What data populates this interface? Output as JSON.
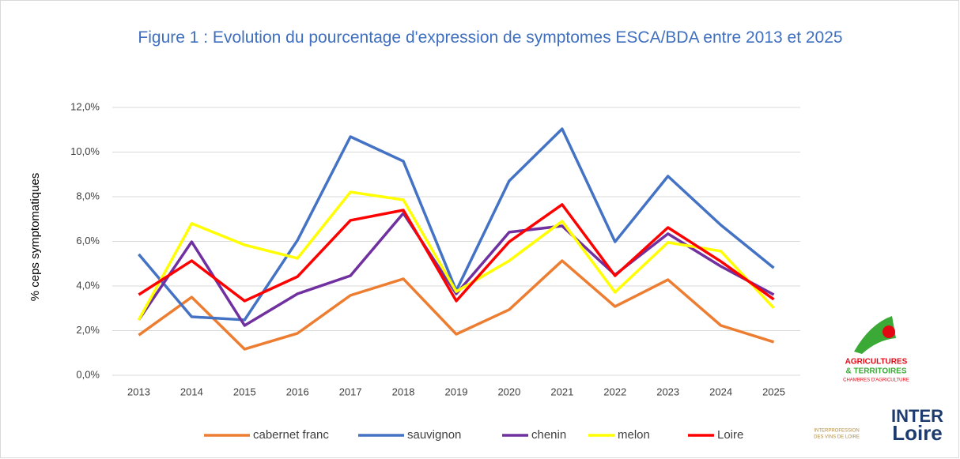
{
  "chart_data": {
    "type": "line",
    "title": "Figure 1 : Evolution du pourcentage d'expression de symptomes ESCA/BDA entre 2013 et 2025",
    "y_label": "% ceps symptomatiques",
    "categories": [
      "2013",
      "2014",
      "2015",
      "2016",
      "2017",
      "2018",
      "2019",
      "2020",
      "2021",
      "2022",
      "2023",
      "2024",
      "2025"
    ],
    "series": [
      {
        "name": "cabernet franc",
        "color": "#ed7d31",
        "values": [
          1.8,
          3.5,
          1.17,
          1.88,
          3.58,
          4.32,
          1.84,
          2.94,
          5.13,
          3.08,
          4.28,
          2.23,
          1.49
        ]
      },
      {
        "name": "sauvignon",
        "color": "#4472c4",
        "values": [
          5.42,
          2.62,
          2.48,
          6.05,
          10.69,
          9.59,
          3.79,
          8.71,
          11.04,
          5.98,
          8.92,
          6.73,
          4.81
        ]
      },
      {
        "name": "chenin",
        "color": "#7030a0",
        "values": [
          2.48,
          5.98,
          2.23,
          3.65,
          4.46,
          7.26,
          3.65,
          6.41,
          6.69,
          4.5,
          6.34,
          4.88,
          3.61
        ]
      },
      {
        "name": "melon",
        "color": "#ffff00",
        "values": [
          2.48,
          6.8,
          5.84,
          5.24,
          8.21,
          7.86,
          3.75,
          5.13,
          6.9,
          3.72,
          5.95,
          5.56,
          3.01
        ]
      },
      {
        "name": "Loire",
        "color": "#ff0000",
        "values": [
          3.61,
          5.13,
          3.33,
          4.42,
          6.94,
          7.4,
          3.33,
          5.98,
          7.65,
          4.46,
          6.62,
          5.1,
          3.4
        ]
      }
    ],
    "ylim": [
      0,
      12
    ],
    "yticks": [
      {
        "value": 0,
        "label": "0,0%"
      },
      {
        "value": 2,
        "label": "2,0%"
      },
      {
        "value": 4,
        "label": "4,0%"
      },
      {
        "value": 6,
        "label": "6,0%"
      },
      {
        "value": 8,
        "label": "8,0%"
      },
      {
        "value": 10,
        "label": "10,0%"
      },
      {
        "value": 12,
        "label": "12,0%"
      }
    ],
    "grid": true,
    "legend": "bottom"
  },
  "logos": {
    "agri": [
      "AGRICULTURES",
      "& TERRITOIRES",
      "CHAMBRES D'AGRICULTURE"
    ],
    "inter": [
      "INTER",
      "Loire",
      "INTERPROFESSION",
      "DES VINS DE LOIRE"
    ]
  }
}
